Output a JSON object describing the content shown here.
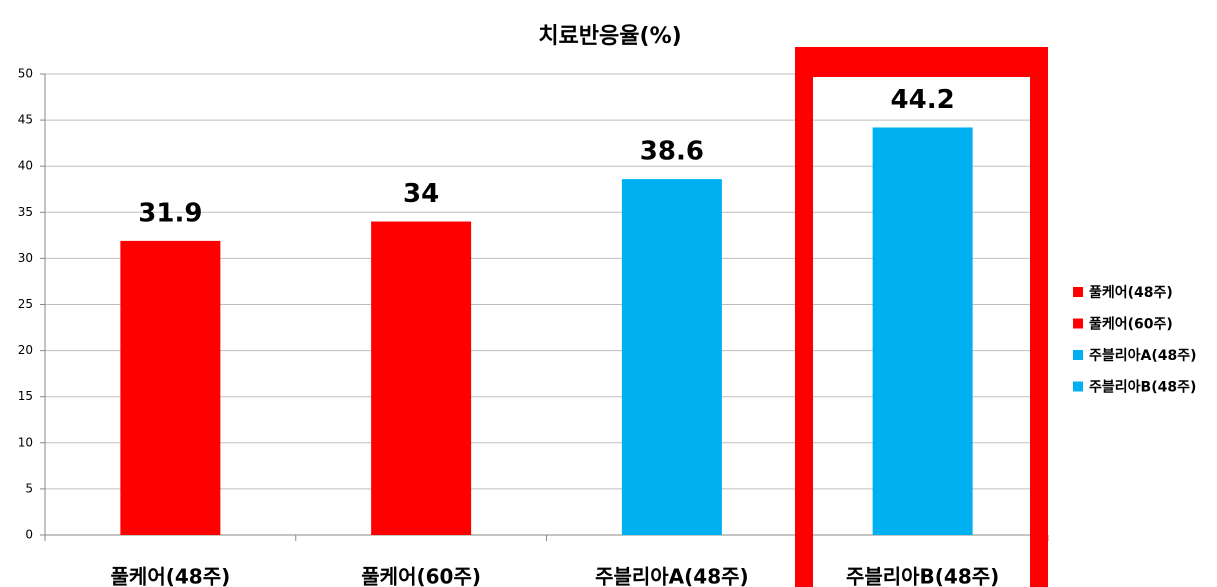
{
  "chart_data": {
    "type": "bar",
    "title": "치료반응율(%)",
    "categories": [
      "풀케어(48주)",
      "풀케어(60주)",
      "주블리아A(48주)",
      "주블리아B(48주)"
    ],
    "values": [
      31.9,
      34,
      38.6,
      44.2
    ],
    "colors": [
      "#ff0000",
      "#ff0000",
      "#00b0f0",
      "#00b0f0"
    ],
    "ylim": [
      0,
      50
    ],
    "yticks": [
      0,
      5,
      10,
      15,
      20,
      25,
      30,
      35,
      40,
      45,
      50
    ],
    "grid": true,
    "legend": "right"
  }
}
